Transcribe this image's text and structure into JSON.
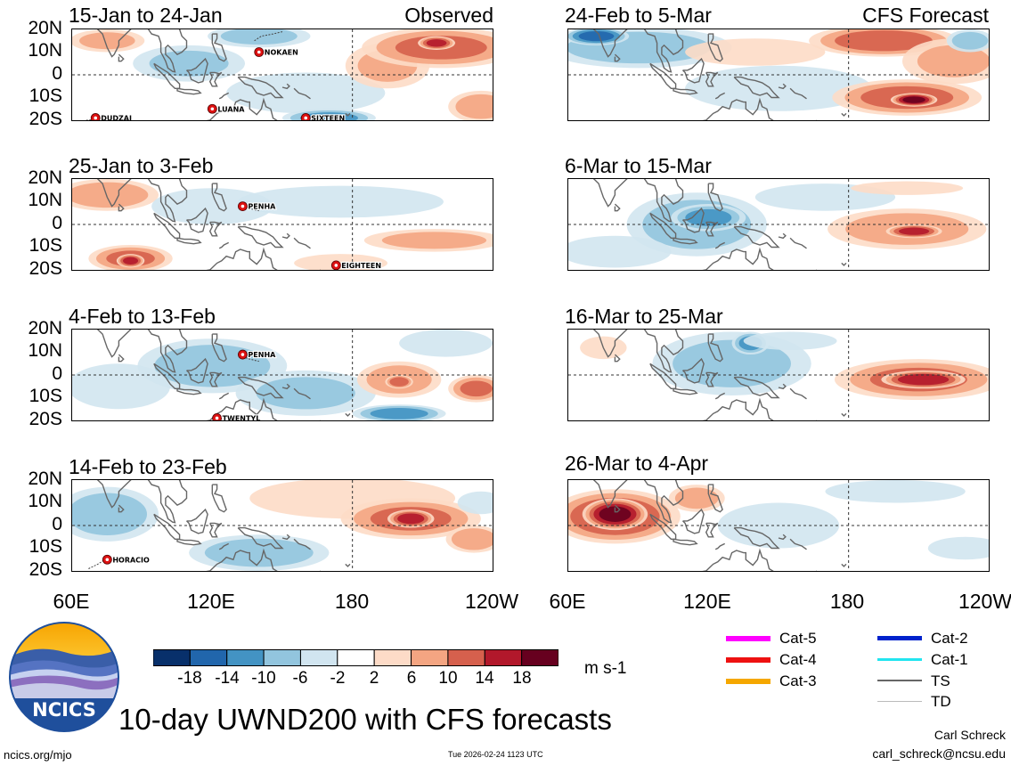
{
  "chart_data": {
    "type": "heatmap",
    "title": "10-day UWND200 with CFS forecasts",
    "variable": "UWND200",
    "units": "m s-1",
    "column_tags": {
      "left": "Observed",
      "right": "CFS Forecast"
    },
    "lat_ticks": [
      "20N",
      "10N",
      "0",
      "10S",
      "20S"
    ],
    "lat_values": [
      20,
      10,
      0,
      -10,
      -20
    ],
    "lon_ticks": [
      "60E",
      "120E",
      "180",
      "120W"
    ],
    "lon_values": [
      60,
      120,
      180,
      240
    ],
    "colorbar": {
      "ticks": [
        "-18",
        "-14",
        "-10",
        "-6",
        "-2",
        "2",
        "6",
        "10",
        "14",
        "18"
      ],
      "levels": [
        -18,
        -14,
        -10,
        -6,
        -2,
        2,
        6,
        10,
        14,
        18
      ],
      "colors": [
        "#08306b",
        "#2166ac",
        "#4393c3",
        "#92c5de",
        "#d1e5f0",
        "#ffffff",
        "#fddbc7",
        "#f4a582",
        "#d6604d",
        "#b2182b",
        "#67001f"
      ]
    },
    "panels": [
      {
        "title": "15-Jan to 24-Jan",
        "source": "observed",
        "blobs": [
          {
            "lon": 75,
            "lat": 15,
            "rx": 16,
            "ry": 5,
            "v": 7
          },
          {
            "lon": 110,
            "lat": 5,
            "rx": 24,
            "ry": 8,
            "v": -6
          },
          {
            "lon": 140,
            "lat": 17,
            "rx": 22,
            "ry": 5,
            "v": -7
          },
          {
            "lon": 160,
            "lat": -8,
            "rx": 34,
            "ry": 9,
            "v": -5
          },
          {
            "lon": 170,
            "lat": -19,
            "rx": 20,
            "ry": 4,
            "v": -11
          },
          {
            "lon": 195,
            "lat": 4,
            "rx": 18,
            "ry": 10,
            "v": 6
          },
          {
            "lon": 218,
            "lat": 12,
            "rx": 34,
            "ry": 9,
            "v": 10
          },
          {
            "lon": 216,
            "lat": 14,
            "rx": 8,
            "ry": 3,
            "v": 15
          },
          {
            "lon": 235,
            "lat": -14,
            "rx": 14,
            "ry": 7,
            "v": 8
          }
        ]
      },
      {
        "title": "24-Feb to 5-Mar",
        "source": "forecast",
        "blobs": [
          {
            "lon": 90,
            "lat": 12,
            "rx": 40,
            "ry": 9,
            "v": -8
          },
          {
            "lon": 72,
            "lat": 17,
            "rx": 14,
            "ry": 4,
            "v": -15
          },
          {
            "lon": 150,
            "lat": -6,
            "rx": 40,
            "ry": 10,
            "v": -5
          },
          {
            "lon": 140,
            "lat": 10,
            "rx": 30,
            "ry": 6,
            "v": 4
          },
          {
            "lon": 195,
            "lat": 15,
            "rx": 32,
            "ry": 7,
            "v": 12
          },
          {
            "lon": 225,
            "lat": 6,
            "rx": 22,
            "ry": 10,
            "v": 6
          },
          {
            "lon": 232,
            "lat": 15,
            "rx": 10,
            "ry": 5,
            "v": -8
          },
          {
            "lon": 205,
            "lat": -10,
            "rx": 32,
            "ry": 8,
            "v": 11
          },
          {
            "lon": 208,
            "lat": -11,
            "rx": 10,
            "ry": 3,
            "v": 19
          }
        ]
      },
      {
        "title": "25-Jan to 3-Feb",
        "source": "observed",
        "blobs": [
          {
            "lon": 75,
            "lat": 13,
            "rx": 22,
            "ry": 7,
            "v": 9
          },
          {
            "lon": 85,
            "lat": -15,
            "rx": 18,
            "ry": 6,
            "v": 10
          },
          {
            "lon": 85,
            "lat": -16,
            "rx": 6,
            "ry": 3,
            "v": 15
          },
          {
            "lon": 120,
            "lat": 8,
            "rx": 26,
            "ry": 8,
            "v": -5
          },
          {
            "lon": 175,
            "lat": 10,
            "rx": 44,
            "ry": 7,
            "v": -4
          },
          {
            "lon": 215,
            "lat": -7,
            "rx": 30,
            "ry": 5,
            "v": 7
          },
          {
            "lon": 175,
            "lat": -17,
            "rx": 20,
            "ry": 4,
            "v": 5
          }
        ]
      },
      {
        "title": "6-Mar to 15-Mar",
        "source": "forecast",
        "blobs": [
          {
            "lon": 115,
            "lat": 0,
            "rx": 30,
            "ry": 14,
            "v": -8
          },
          {
            "lon": 120,
            "lat": 3,
            "rx": 16,
            "ry": 6,
            "v": -11
          },
          {
            "lon": 80,
            "lat": -12,
            "rx": 24,
            "ry": 7,
            "v": -5
          },
          {
            "lon": 170,
            "lat": 12,
            "rx": 30,
            "ry": 6,
            "v": -4
          },
          {
            "lon": 205,
            "lat": -2,
            "rx": 34,
            "ry": 9,
            "v": 8
          },
          {
            "lon": 208,
            "lat": -3,
            "rx": 12,
            "ry": 3,
            "v": 15
          },
          {
            "lon": 205,
            "lat": 16,
            "rx": 24,
            "ry": 3,
            "v": 3
          }
        ]
      },
      {
        "title": "4-Feb to 13-Feb",
        "source": "observed",
        "blobs": [
          {
            "lon": 120,
            "lat": 4,
            "rx": 32,
            "ry": 12,
            "v": -8
          },
          {
            "lon": 160,
            "lat": -8,
            "rx": 30,
            "ry": 10,
            "v": -6
          },
          {
            "lon": 200,
            "lat": -17,
            "rx": 20,
            "ry": 4,
            "v": -11
          },
          {
            "lon": 80,
            "lat": -5,
            "rx": 22,
            "ry": 10,
            "v": -4
          },
          {
            "lon": 200,
            "lat": -2,
            "rx": 18,
            "ry": 8,
            "v": 8
          },
          {
            "lon": 200,
            "lat": -3,
            "rx": 6,
            "ry": 3,
            "v": 13
          },
          {
            "lon": 233,
            "lat": -6,
            "rx": 12,
            "ry": 6,
            "v": 10
          },
          {
            "lon": 220,
            "lat": 14,
            "rx": 20,
            "ry": 6,
            "v": -3
          }
        ]
      },
      {
        "title": "16-Mar to 25-Mar",
        "source": "forecast",
        "blobs": [
          {
            "lon": 130,
            "lat": 5,
            "rx": 34,
            "ry": 14,
            "v": -7
          },
          {
            "lon": 138,
            "lat": 14,
            "rx": 8,
            "ry": 5,
            "v": -11
          },
          {
            "lon": 75,
            "lat": 12,
            "rx": 10,
            "ry": 5,
            "v": 4
          },
          {
            "lon": 210,
            "lat": -2,
            "rx": 36,
            "ry": 9,
            "v": 10
          },
          {
            "lon": 212,
            "lat": -2,
            "rx": 18,
            "ry": 4,
            "v": 17
          },
          {
            "lon": 155,
            "lat": 15,
            "rx": 20,
            "ry": 4,
            "v": -3
          }
        ]
      },
      {
        "title": "14-Feb to 23-Feb",
        "source": "observed",
        "blobs": [
          {
            "lon": 75,
            "lat": 5,
            "rx": 22,
            "ry": 12,
            "v": -8
          },
          {
            "lon": 140,
            "lat": -12,
            "rx": 30,
            "ry": 8,
            "v": -8
          },
          {
            "lon": 180,
            "lat": 12,
            "rx": 44,
            "ry": 9,
            "v": 5
          },
          {
            "lon": 205,
            "lat": 3,
            "rx": 30,
            "ry": 9,
            "v": 10
          },
          {
            "lon": 205,
            "lat": 3,
            "rx": 10,
            "ry": 4,
            "v": 16
          },
          {
            "lon": 232,
            "lat": -6,
            "rx": 12,
            "ry": 6,
            "v": 9
          },
          {
            "lon": 235,
            "lat": 10,
            "rx": 10,
            "ry": 5,
            "v": -5
          }
        ]
      },
      {
        "title": "26-Mar to 4-Apr",
        "source": "forecast",
        "blobs": [
          {
            "lon": 80,
            "lat": 4,
            "rx": 28,
            "ry": 12,
            "v": 13
          },
          {
            "lon": 80,
            "lat": 5,
            "rx": 14,
            "ry": 7,
            "v": 19
          },
          {
            "lon": 115,
            "lat": 12,
            "rx": 12,
            "ry": 6,
            "v": 8
          },
          {
            "lon": 150,
            "lat": 0,
            "rx": 26,
            "ry": 10,
            "v": -4
          },
          {
            "lon": 200,
            "lat": 15,
            "rx": 30,
            "ry": 5,
            "v": -3
          },
          {
            "lon": 230,
            "lat": -10,
            "rx": 16,
            "ry": 5,
            "v": -3
          }
        ]
      }
    ],
    "storm_labels": [
      {
        "panel": 0,
        "name": "NOKAEN",
        "lon": 140,
        "lat": 10
      },
      {
        "panel": 0,
        "name": "DUDZAI",
        "lon": 70,
        "lat": -19
      },
      {
        "panel": 0,
        "name": "LUANA",
        "lon": 120,
        "lat": -15
      },
      {
        "panel": 0,
        "name": "SIXTEEN",
        "lon": 160,
        "lat": -19
      },
      {
        "panel": 2,
        "name": "PENHA",
        "lon": 133,
        "lat": 8
      },
      {
        "panel": 2,
        "name": "EIGHTEEN",
        "lon": 173,
        "lat": -18
      },
      {
        "panel": 4,
        "name": "PENHA",
        "lon": 133,
        "lat": 9
      },
      {
        "panel": 4,
        "name": "TWENTYL",
        "lon": 122,
        "lat": -19
      },
      {
        "panel": 6,
        "name": "HORACIO",
        "lon": 75,
        "lat": -15
      }
    ]
  },
  "legend": {
    "items": [
      {
        "label": "Cat-5",
        "color": "#ff00ff",
        "weight": "thick"
      },
      {
        "label": "Cat-4",
        "color": "#ee1111",
        "weight": "thick"
      },
      {
        "label": "Cat-3",
        "color": "#f5a700",
        "weight": "thick"
      },
      {
        "label": "Cat-2",
        "color": "#0022cc",
        "weight": "thick"
      },
      {
        "label": "Cat-1",
        "color": "#22e5f0",
        "weight": "medium"
      },
      {
        "label": "TS",
        "color": "#666666",
        "weight": "medium"
      },
      {
        "label": "TD",
        "color": "#bbbbbb",
        "weight": "thin"
      }
    ]
  },
  "logo": {
    "text": "NCICS"
  },
  "footer": {
    "left": "ncics.org/mjo",
    "center": "Tue 2026-02-24 1123 UTC",
    "author": "Carl Schreck",
    "email": "carl_schreck@ncsu.edu"
  }
}
